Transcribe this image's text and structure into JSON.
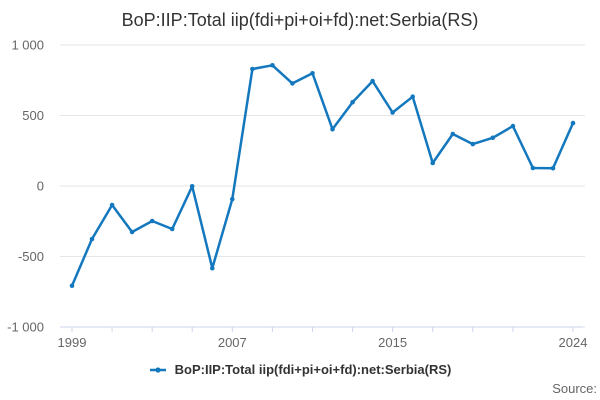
{
  "title": "BoP:IIP:Total iip(fdi+pi+oi+fd):net:Serbia(RS)",
  "source_label": "Source:",
  "legend": {
    "label": "BoP:IIP:Total iip(fdi+pi+oi+fd):net:Serbia(RS)"
  },
  "colors": {
    "series": "#1478be",
    "grid": "#e6e6e6",
    "axis_line": "#ccd6eb",
    "tick_label": "#666666",
    "title_text": "#333333"
  },
  "chart_data": {
    "type": "line",
    "title": "BoP:IIP:Total iip(fdi+pi+oi+fd):net:Serbia(RS)",
    "xlabel": "",
    "ylabel": "",
    "grid": true,
    "legend_position": "bottom",
    "ylim": [
      -1000,
      1000
    ],
    "x": [
      1999,
      2000,
      2001,
      2002,
      2003,
      2004,
      2005,
      2006,
      2007,
      2008,
      2009,
      2010,
      2011,
      2012,
      2013,
      2014,
      2015,
      2016,
      2017,
      2018,
      2019,
      2020,
      2021,
      2022,
      2023,
      2024
    ],
    "series": [
      {
        "name": "BoP:IIP:Total iip(fdi+pi+oi+fd):net:Serbia(RS)",
        "values": [
          -707,
          -376,
          -135,
          -326,
          -248,
          -305,
          -2,
          -583,
          -93,
          830,
          856,
          728,
          799,
          403,
          594,
          744,
          521,
          633,
          163,
          369,
          297,
          342,
          425,
          128,
          126,
          446
        ]
      }
    ],
    "y_ticks": [
      {
        "value": 1000,
        "label": "1 000"
      },
      {
        "value": 500,
        "label": "500"
      },
      {
        "value": 0,
        "label": "0"
      },
      {
        "value": -500,
        "label": "-500"
      },
      {
        "value": -1000,
        "label": "-1 000"
      }
    ],
    "x_axis": {
      "minor_tick_years": [
        1999,
        2001,
        2003,
        2005,
        2007,
        2009,
        2011,
        2013,
        2015,
        2017,
        2019,
        2021,
        2024
      ],
      "labeled_ticks": [
        {
          "year": 1999,
          "label": "1999"
        },
        {
          "year": 2007,
          "label": "2007"
        },
        {
          "year": 2015,
          "label": "2015"
        },
        {
          "year": 2024,
          "label": "2024"
        }
      ]
    }
  }
}
